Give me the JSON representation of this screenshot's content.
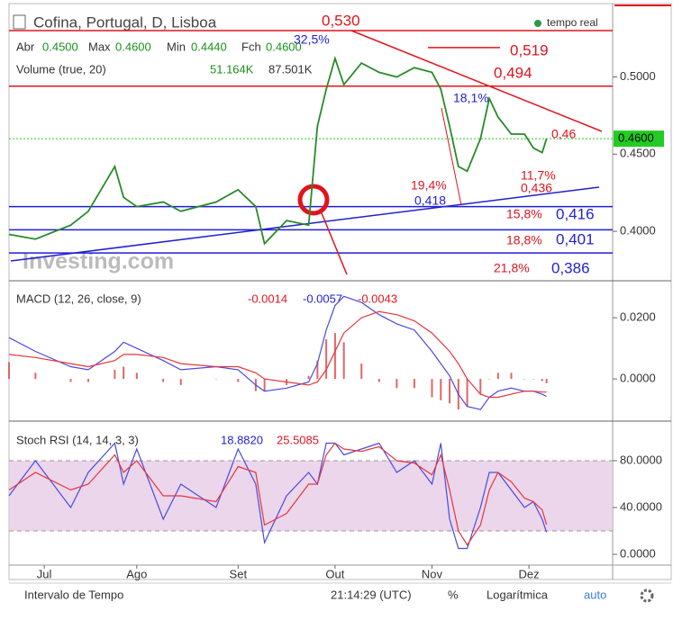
{
  "ui": {
    "tempo_real": "tempo real",
    "stats": [
      {
        "label": "Abr",
        "value": "0.4500"
      },
      {
        "label": "Max",
        "value": "0.4600"
      },
      {
        "label": "Min",
        "value": "0.4440"
      },
      {
        "label": "Fch",
        "value": "0.4600"
      }
    ],
    "volume": {
      "title": "Volume (true, 20)",
      "values": [
        "51.164K",
        "87.501K"
      ]
    },
    "watermark": "Investing.com",
    "footer": {
      "interval": "Intervalo de Tempo",
      "time": "21:14:29 (UTC)",
      "percent": "%",
      "log": "Logarítmica",
      "auto": "auto"
    }
  },
  "chart_data": [
    {
      "type": "line",
      "title": "Cofina, Portugal, D, Lisboa",
      "x": [
        0,
        6,
        14,
        18,
        24,
        26,
        29,
        35,
        39,
        47,
        52,
        56,
        58,
        63,
        68,
        70,
        72,
        74,
        76,
        80,
        84,
        88,
        92,
        96,
        98,
        100,
        102,
        104,
        107,
        109,
        111,
        114,
        117,
        119,
        121,
        122
      ],
      "xlim": [
        0,
        137
      ],
      "ylim": [
        0.368,
        0.544
      ],
      "yticks": [
        {
          "value": 0.5,
          "label": "0.5000"
        },
        {
          "value": 0.45,
          "label": "0.4500"
        },
        {
          "value": 0.4,
          "label": "0.4000"
        }
      ],
      "series": [
        {
          "name": "Cofina",
          "color": "#2a8a2a",
          "values": [
            0.398,
            0.395,
            0.404,
            0.413,
            0.442,
            0.422,
            0.416,
            0.419,
            0.413,
            0.419,
            0.427,
            0.416,
            0.392,
            0.407,
            0.404,
            0.468,
            0.492,
            0.512,
            0.495,
            0.509,
            0.503,
            0.5,
            0.506,
            0.503,
            0.492,
            0.468,
            0.442,
            0.439,
            0.46,
            0.486,
            0.474,
            0.463,
            0.463,
            0.454,
            0.451,
            0.46
          ]
        }
      ],
      "last_price": {
        "value": 0.46,
        "label": "0.4600",
        "color": "#22cc22"
      },
      "levels": [
        {
          "value": 0.53,
          "label": "0,530",
          "color": "#e0141e"
        },
        {
          "value": 0.494,
          "label": "0,494",
          "color": "#e0141e"
        },
        {
          "value": 0.519,
          "label": "0,519",
          "color": "#e0141e"
        },
        {
          "value": 0.416,
          "label": "0,416",
          "color": "#1f1fd6"
        },
        {
          "value": 0.401,
          "label": "0,401",
          "color": "#1f1fd6"
        },
        {
          "value": 0.386,
          "label": "0,386",
          "color": "#1f1fd6"
        }
      ],
      "annotations": [
        {
          "text": "32,5%",
          "color": "#1f1fd6"
        },
        {
          "text": "18,1%",
          "color": "#1f1fd6"
        },
        {
          "text": "0,46",
          "color": "#e0141e"
        },
        {
          "text": "19,4%",
          "color": "#e0141e"
        },
        {
          "text": "0,418",
          "color": "#1f1fd6"
        },
        {
          "text": "11,7%",
          "color": "#e0141e"
        },
        {
          "text": "0,436",
          "color": "#e0141e"
        },
        {
          "text": "15,8%",
          "color": "#e0141e"
        },
        {
          "text": "18,8%",
          "color": "#e0141e"
        },
        {
          "text": "21,8%",
          "color": "#e0141e"
        }
      ]
    },
    {
      "type": "line",
      "title": "MACD (12, 26, close, 9)",
      "readouts": [
        {
          "text": "-0.0014",
          "color": "#e0141e"
        },
        {
          "text": "-0.0057",
          "color": "#1f1fd6"
        },
        {
          "text": "-0.0043",
          "color": "#e0141e"
        }
      ],
      "x": [
        0,
        6,
        14,
        18,
        24,
        26,
        29,
        35,
        39,
        47,
        52,
        56,
        58,
        63,
        68,
        70,
        72,
        74,
        76,
        80,
        84,
        88,
        92,
        96,
        98,
        100,
        102,
        104,
        107,
        109,
        111,
        114,
        117,
        119,
        121,
        122
      ],
      "xlim": [
        0,
        137
      ],
      "ylim": [
        -0.0138,
        0.0321
      ],
      "yticks": [
        {
          "value": 0.02,
          "label": "0.0200"
        },
        {
          "value": 0,
          "label": "0.0000"
        }
      ],
      "series": [
        {
          "name": "Histogram",
          "style": "bar",
          "color": "#e06666",
          "values": [
            0.0055,
            0.002,
            -0.001,
            -0.001,
            0.003,
            0.004,
            0.002,
            -0.001,
            -0.002,
            0,
            -0.001,
            -0.004,
            -0.004,
            -0.002,
            0.001,
            0.006,
            0.013,
            0.015,
            0.012,
            0.005,
            -0.001,
            -0.003,
            -0.003,
            -0.006,
            -0.007,
            -0.008,
            -0.01,
            -0.009,
            -0.005,
            0,
            0.002,
            0.002,
            0,
            0,
            -0.0007,
            -0.0014
          ]
        },
        {
          "name": "MACD",
          "color": "#4a4ae0",
          "values": [
            0.0135,
            0.009,
            0.004,
            0.003,
            0.009,
            0.012,
            0.01,
            0.006,
            0.003,
            0.004,
            0.003,
            -0.002,
            -0.004,
            -0.003,
            -0.001,
            0.005,
            0.016,
            0.024,
            0.027,
            0.025,
            0.021,
            0.018,
            0.016,
            0.009,
            0.005,
            0.001,
            -0.005,
            -0.009,
            -0.01,
            -0.006,
            -0.004,
            -0.003,
            -0.004,
            -0.004,
            -0.005,
            -0.0057
          ]
        },
        {
          "name": "Signal",
          "color": "#e8353a",
          "values": [
            0.008,
            0.007,
            0.005,
            0.004,
            0.006,
            0.008,
            0.008,
            0.007,
            0.005,
            0.004,
            0.004,
            0.002,
            0,
            -0.001,
            -0.002,
            -0.001,
            0.003,
            0.009,
            0.015,
            0.02,
            0.022,
            0.021,
            0.019,
            0.015,
            0.012,
            0.009,
            0.005,
            0,
            -0.005,
            -0.006,
            -0.006,
            -0.005,
            -0.004,
            -0.004,
            -0.0043,
            -0.0043
          ]
        }
      ]
    },
    {
      "type": "line",
      "title": "Stoch RSI (14, 14, 3, 3)",
      "readouts": [
        {
          "text": "18.8820",
          "color": "#1f1fd6"
        },
        {
          "text": "25.5085",
          "color": "#e0141e"
        }
      ],
      "x": [
        0,
        6,
        14,
        18,
        24,
        26,
        29,
        35,
        39,
        47,
        52,
        56,
        58,
        63,
        68,
        70,
        72,
        74,
        76,
        80,
        84,
        88,
        92,
        96,
        98,
        100,
        102,
        104,
        107,
        109,
        111,
        114,
        117,
        119,
        121,
        122
      ],
      "xlim": [
        0,
        137
      ],
      "xticks": [
        {
          "value": 8,
          "label": "Jul"
        },
        {
          "value": 29,
          "label": "Ago"
        },
        {
          "value": 52,
          "label": "Set"
        },
        {
          "value": 74,
          "label": "Out"
        },
        {
          "value": 96,
          "label": "Nov"
        },
        {
          "value": 118,
          "label": "Dez"
        }
      ],
      "ylim": [
        -9.2,
        113.8
      ],
      "yticks": [
        {
          "value": 80,
          "label": "80.0000"
        },
        {
          "value": 40,
          "label": "40.0000"
        },
        {
          "value": 0,
          "label": "0.0000"
        }
      ],
      "band": [
        20,
        80
      ],
      "band_color": "#e6cce6",
      "series": [
        {
          "name": "K",
          "color": "#4a4ae0",
          "values": [
            50,
            80,
            40,
            70,
            95,
            60,
            90,
            30,
            60,
            40,
            90,
            60,
            10,
            50,
            70,
            60,
            95,
            95,
            85,
            90,
            95,
            70,
            80,
            60,
            95,
            30,
            5,
            5,
            40,
            70,
            70,
            55,
            40,
            45,
            30,
            18.882
          ]
        },
        {
          "name": "D",
          "color": "#e8353a",
          "values": [
            55,
            70,
            55,
            60,
            85,
            70,
            80,
            50,
            50,
            45,
            75,
            70,
            25,
            35,
            60,
            60,
            85,
            95,
            90,
            88,
            92,
            80,
            78,
            68,
            85,
            55,
            20,
            8,
            25,
            55,
            70,
            62,
            48,
            45,
            38,
            25.5085
          ]
        }
      ]
    }
  ]
}
